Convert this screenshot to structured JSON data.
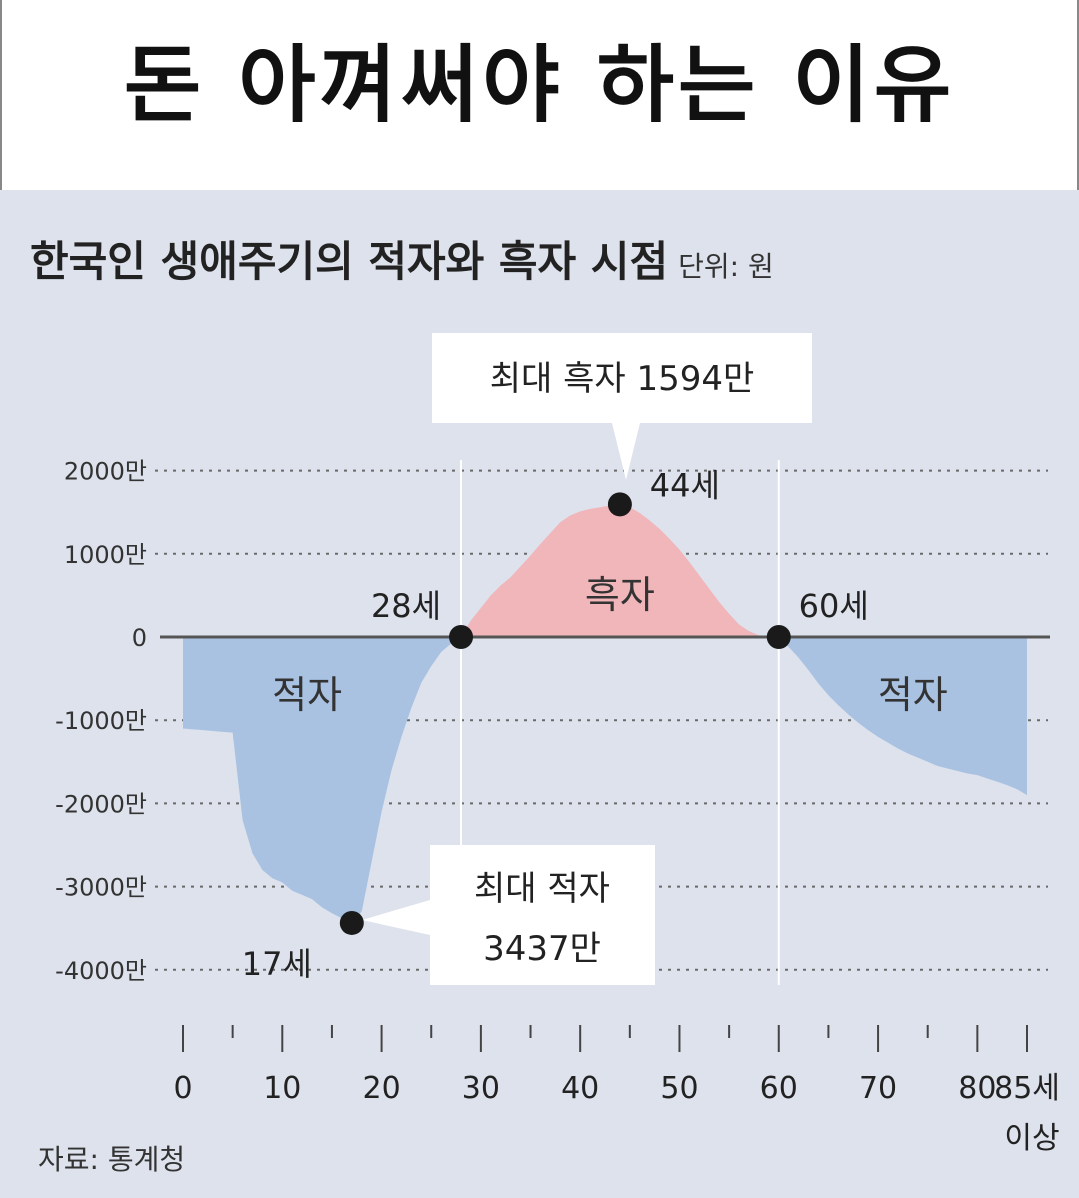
{
  "headline": "돈 아껴써야 하는 이유",
  "chart_title": "한국인 생애주기의 적자와 흑자 시점",
  "unit": "단위: 원",
  "source": "자료: 통계청",
  "colors": {
    "surplus": "#f0b6ba",
    "deficit": "#a9c2e2",
    "panel": "#dde2ec",
    "axis": "#555555"
  },
  "chart_data": {
    "type": "area",
    "title": "한국인 생애주기의 적자와 흑자 시점",
    "unit": "원",
    "y_tick_labels": [
      "2000만",
      "1000만",
      "0",
      "-1000만",
      "-2000만",
      "-3000만",
      "-4000만"
    ],
    "y_ticks": [
      2000,
      1000,
      0,
      -1000,
      -2000,
      -3000,
      -4000
    ],
    "ylim": [
      -4000,
      2000
    ],
    "x_tick_labels": [
      "0",
      "10",
      "20",
      "30",
      "40",
      "50",
      "60",
      "70",
      "80",
      "85세",
      "이상"
    ],
    "x_ticks": [
      0,
      10,
      20,
      30,
      40,
      50,
      60,
      70,
      80,
      85
    ],
    "xlim": [
      0,
      85
    ],
    "grid": true,
    "series": [
      {
        "values_unit": "만원",
        "x": [
          0,
          1,
          2,
          3,
          4,
          5,
          6,
          7,
          8,
          9,
          10,
          11,
          12,
          13,
          14,
          15,
          16,
          17,
          18,
          19,
          20,
          21,
          22,
          23,
          24,
          25,
          26,
          27,
          28,
          29,
          30,
          31,
          32,
          33,
          34,
          35,
          36,
          37,
          38,
          39,
          40,
          41,
          42,
          43,
          44,
          45,
          46,
          47,
          48,
          49,
          50,
          51,
          52,
          53,
          54,
          55,
          56,
          57,
          58,
          59,
          60,
          61,
          62,
          63,
          64,
          65,
          66,
          67,
          68,
          69,
          70,
          71,
          72,
          73,
          74,
          75,
          76,
          77,
          78,
          79,
          80,
          81,
          82,
          83,
          84,
          85
        ],
        "y": [
          -1100,
          -1110,
          -1120,
          -1130,
          -1140,
          -1150,
          -2200,
          -2600,
          -2800,
          -2900,
          -2950,
          -3050,
          -3100,
          -3150,
          -3250,
          -3320,
          -3380,
          -3437,
          -3300,
          -2700,
          -2100,
          -1600,
          -1200,
          -850,
          -550,
          -350,
          -180,
          -80,
          0,
          200,
          350,
          500,
          620,
          720,
          850,
          980,
          1120,
          1250,
          1380,
          1460,
          1510,
          1540,
          1560,
          1580,
          1594,
          1560,
          1490,
          1400,
          1300,
          1180,
          1050,
          900,
          740,
          580,
          420,
          280,
          150,
          70,
          20,
          5,
          0,
          -120,
          -250,
          -400,
          -560,
          -700,
          -820,
          -930,
          -1030,
          -1120,
          -1200,
          -1270,
          -1340,
          -1400,
          -1450,
          -1500,
          -1550,
          -1580,
          -1610,
          -1640,
          -1660,
          -1700,
          -1740,
          -1780,
          -1830,
          -1900
        ]
      }
    ],
    "area_labels": {
      "deficit_left": "적자",
      "surplus": "흑자",
      "deficit_right": "적자"
    },
    "markers": [
      {
        "x": 17,
        "y": -3437,
        "label": "17세"
      },
      {
        "x": 28,
        "y": 0,
        "label": "28세"
      },
      {
        "x": 44,
        "y": 1594,
        "label": "44세"
      },
      {
        "x": 60,
        "y": 0,
        "label": "60세"
      }
    ],
    "callouts": {
      "max_surplus": "최대 흑자 1594만",
      "max_deficit_line1": "최대 적자",
      "max_deficit_line2": "3437만"
    }
  }
}
